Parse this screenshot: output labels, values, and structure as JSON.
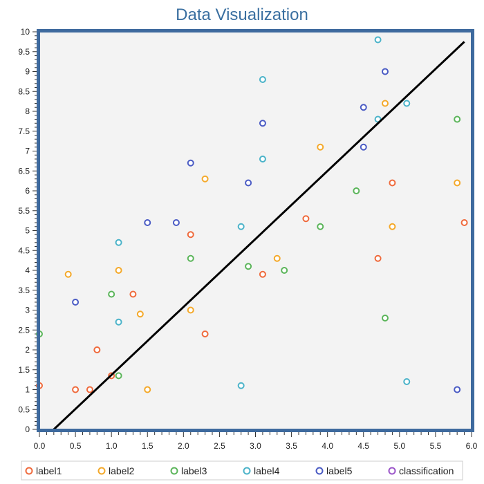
{
  "chart_data": {
    "type": "scatter",
    "title": "Data Visualization",
    "xlabel": "",
    "ylabel": "",
    "xlim": [
      0,
      6
    ],
    "ylim": [
      0,
      10
    ],
    "x_ticks": [
      "0.0",
      "0.5",
      "1.0",
      "1.5",
      "2.0",
      "2.5",
      "3.0",
      "3.5",
      "4.0",
      "4.5",
      "5.0",
      "5.5",
      "6.0"
    ],
    "y_ticks": [
      "0",
      "0.5",
      "1",
      "1.5",
      "2",
      "2.5",
      "3",
      "3.5",
      "4",
      "4.5",
      "5",
      "5.5",
      "6",
      "6.5",
      "7",
      "7.5",
      "8",
      "8.5",
      "9",
      "9.5",
      "10"
    ],
    "grid": false,
    "legend_position": "bottom",
    "background_color": "#f3f3f3",
    "frame_color": "#3e6a9e",
    "trend_line": {
      "x": [
        0.2,
        5.9
      ],
      "y": [
        0,
        9.75
      ],
      "color": "#000000"
    },
    "series": [
      {
        "name": "label1",
        "color": "#ef6a3c",
        "points": [
          [
            0.0,
            1.1
          ],
          [
            0.5,
            1.0
          ],
          [
            0.7,
            1.0
          ],
          [
            0.8,
            2.0
          ],
          [
            1.0,
            1.35
          ],
          [
            1.3,
            3.4
          ],
          [
            2.1,
            4.9
          ],
          [
            2.3,
            2.4
          ],
          [
            3.1,
            3.9
          ],
          [
            3.7,
            5.3
          ],
          [
            4.7,
            4.3
          ],
          [
            4.9,
            6.2
          ],
          [
            5.9,
            5.2
          ]
        ]
      },
      {
        "name": "label2",
        "color": "#f4a92a",
        "points": [
          [
            0.4,
            3.9
          ],
          [
            1.1,
            4.0
          ],
          [
            1.4,
            2.9
          ],
          [
            1.5,
            1.0
          ],
          [
            2.1,
            3.0
          ],
          [
            2.3,
            6.3
          ],
          [
            3.3,
            4.3
          ],
          [
            3.9,
            7.1
          ],
          [
            4.8,
            8.2
          ],
          [
            4.9,
            5.1
          ],
          [
            5.8,
            6.2
          ]
        ]
      },
      {
        "name": "label3",
        "color": "#5bb55a",
        "points": [
          [
            0.0,
            2.4
          ],
          [
            1.0,
            3.4
          ],
          [
            1.1,
            1.35
          ],
          [
            2.1,
            4.3
          ],
          [
            2.9,
            4.1
          ],
          [
            3.4,
            4.0
          ],
          [
            3.9,
            5.1
          ],
          [
            4.4,
            6.0
          ],
          [
            4.8,
            2.8
          ],
          [
            5.8,
            7.8
          ]
        ]
      },
      {
        "name": "label4",
        "color": "#4bb3c9",
        "points": [
          [
            1.1,
            4.7
          ],
          [
            1.1,
            2.7
          ],
          [
            2.8,
            5.1
          ],
          [
            2.8,
            1.1
          ],
          [
            3.1,
            8.8
          ],
          [
            3.1,
            6.8
          ],
          [
            4.7,
            9.8
          ],
          [
            4.7,
            7.8
          ],
          [
            5.1,
            8.2
          ],
          [
            5.1,
            1.2
          ]
        ]
      },
      {
        "name": "label5",
        "color": "#4a5bc4",
        "points": [
          [
            0.5,
            3.2
          ],
          [
            1.5,
            5.2
          ],
          [
            1.9,
            5.2
          ],
          [
            2.1,
            6.7
          ],
          [
            2.9,
            6.2
          ],
          [
            3.1,
            7.7
          ],
          [
            4.5,
            8.1
          ],
          [
            4.5,
            7.1
          ],
          [
            4.8,
            9.0
          ],
          [
            5.8,
            1.0
          ]
        ]
      },
      {
        "name": "classification",
        "color": "#9b55c9",
        "points": []
      }
    ]
  }
}
